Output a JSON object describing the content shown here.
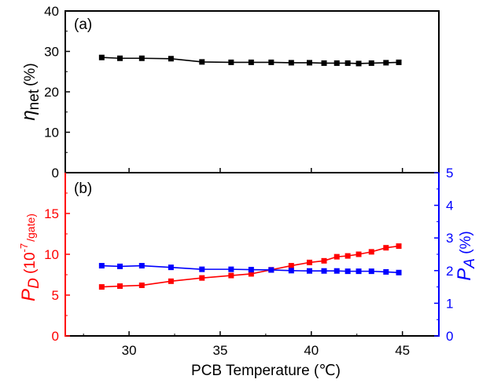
{
  "chart_data": [
    {
      "panel": "(a)",
      "type": "line",
      "ylabel_symbol": "η",
      "ylabel_sub": "net",
      "ylabel_unit": "(%)",
      "ylim": [
        0,
        40
      ],
      "yticks": [
        0,
        10,
        20,
        30,
        40
      ],
      "xlim": [
        26.5,
        47
      ],
      "xticks": [
        30,
        35,
        40,
        45
      ],
      "series": [
        {
          "color": "#000000",
          "marker": "square",
          "x": [
            28.5,
            29.5,
            30.7,
            32.3,
            34.0,
            35.6,
            36.7,
            37.8,
            38.9,
            39.9,
            40.7,
            41.4,
            42.0,
            42.6,
            43.3,
            44.1,
            44.8
          ],
          "y": [
            28.5,
            28.3,
            28.3,
            28.2,
            27.4,
            27.3,
            27.3,
            27.3,
            27.2,
            27.2,
            27.1,
            27.1,
            27.1,
            27.0,
            27.1,
            27.2,
            27.3
          ]
        }
      ]
    },
    {
      "panel": "(b)",
      "type": "line",
      "xlabel": "PCB Temperature (℃)",
      "xlim": [
        26.5,
        47
      ],
      "xticks": [
        30,
        35,
        40,
        45
      ],
      "left_axis": {
        "color": "#ff0000",
        "label_symbol": "P",
        "label_sub": "D",
        "label_rest": " (10",
        "label_sup": "-7",
        "label_unit": "/gate)",
        "ylim": [
          0,
          20
        ],
        "yticks": [
          0,
          5,
          10,
          15
        ]
      },
      "right_axis": {
        "color": "#0000ff",
        "label_symbol": "P",
        "label_sub": "A",
        "label_unit": " (%)",
        "ylim": [
          0,
          5
        ],
        "yticks": [
          0,
          1,
          2,
          3,
          4,
          5
        ]
      },
      "series": [
        {
          "axis": "left",
          "color": "#ff0000",
          "marker": "square",
          "x": [
            28.5,
            29.5,
            30.7,
            32.3,
            34.0,
            35.6,
            36.7,
            37.8,
            38.9,
            39.9,
            40.7,
            41.4,
            42.0,
            42.6,
            43.3,
            44.1,
            44.8
          ],
          "y": [
            6.0,
            6.1,
            6.2,
            6.7,
            7.1,
            7.4,
            7.6,
            8.1,
            8.6,
            9.0,
            9.2,
            9.7,
            9.8,
            10.0,
            10.3,
            10.8,
            11.0
          ]
        },
        {
          "axis": "right",
          "color": "#0000ff",
          "marker": "square",
          "x": [
            28.5,
            29.5,
            30.7,
            32.3,
            34.0,
            35.6,
            36.7,
            37.8,
            38.9,
            39.9,
            40.7,
            41.4,
            42.0,
            42.6,
            43.3,
            44.1,
            44.8
          ],
          "y": [
            2.15,
            2.13,
            2.15,
            2.1,
            2.04,
            2.04,
            2.03,
            2.02,
            2.0,
            1.99,
            1.99,
            1.99,
            1.98,
            1.98,
            1.98,
            1.96,
            1.94
          ]
        }
      ]
    }
  ]
}
